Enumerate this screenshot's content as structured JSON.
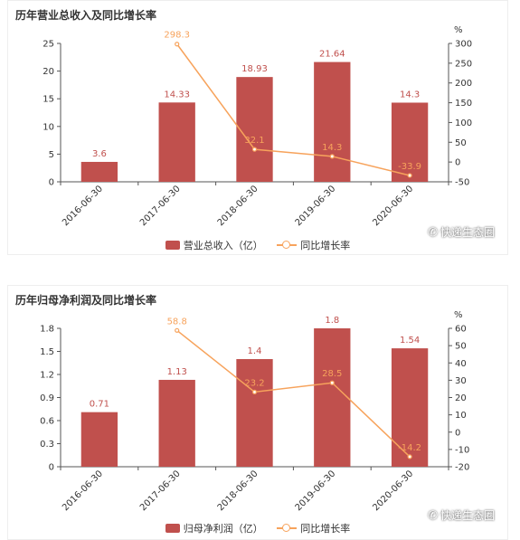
{
  "colors": {
    "bar": "#c0504d",
    "line": "#f7a35c",
    "bar_label": "#c0504d",
    "line_label": "#f7a35c",
    "axis": "#555555",
    "grid": "#e5e5e5"
  },
  "watermark": {
    "icon": "wechat-chat-icon",
    "text": "快递生态圈"
  },
  "charts": [
    {
      "title": "历年营业总收入及同比增长率",
      "legend": {
        "bar": "营业总收入（亿）",
        "line": "同比增长率"
      }
    },
    {
      "title": "历年归母净利润及同比增长率",
      "legend": {
        "bar": "归母净利润（亿）",
        "line": "同比增长率"
      }
    }
  ],
  "chart_data": [
    {
      "type": "bar",
      "title": "历年营业总收入及同比增长率",
      "categories": [
        "2016-06-30",
        "2017-06-30",
        "2018-06-30",
        "2019-06-30",
        "2020-06-30"
      ],
      "series": [
        {
          "name": "营业总收入（亿）",
          "type": "bar",
          "axis": "left",
          "values": [
            3.6,
            14.33,
            18.93,
            21.64,
            14.3
          ],
          "labels": [
            "3.6",
            "14.33",
            "18.93",
            "21.64",
            "14.3"
          ]
        },
        {
          "name": "同比增长率",
          "type": "line",
          "axis": "right",
          "values": [
            null,
            298.3,
            32.1,
            14.3,
            -33.9
          ],
          "labels": [
            "",
            "298.3",
            "32.1",
            "14.3",
            "-33.9"
          ]
        }
      ],
      "y_left": {
        "ticks": [
          "0",
          "5",
          "10",
          "15",
          "20",
          "25"
        ],
        "lim": [
          0,
          25
        ]
      },
      "y_right": {
        "ticks": [
          "-50",
          "0",
          "50",
          "100",
          "150",
          "200",
          "250",
          "300"
        ],
        "lim": [
          -50,
          300
        ],
        "unit": "%"
      },
      "legend_position": "bottom-center",
      "grid": false
    },
    {
      "type": "bar",
      "title": "历年归母净利润及同比增长率",
      "categories": [
        "2016-06-30",
        "2017-06-30",
        "2018-06-30",
        "2019-06-30",
        "2020-06-30"
      ],
      "series": [
        {
          "name": "归母净利润（亿）",
          "type": "bar",
          "axis": "left",
          "values": [
            0.71,
            1.13,
            1.4,
            1.8,
            1.54
          ],
          "labels": [
            "0.71",
            "1.13",
            "1.4",
            "1.8",
            "1.54"
          ]
        },
        {
          "name": "同比增长率",
          "type": "line",
          "axis": "right",
          "values": [
            null,
            58.8,
            23.2,
            28.5,
            -14.2
          ],
          "labels": [
            "",
            "58.8",
            "23.2",
            "28.5",
            "-14.2"
          ]
        }
      ],
      "y_left": {
        "ticks": [
          "0",
          "0.3",
          "0.6",
          "0.9",
          "1.2",
          "1.5",
          "1.8"
        ],
        "lim": [
          0,
          1.8
        ]
      },
      "y_right": {
        "ticks": [
          "-20",
          "-10",
          "0",
          "10",
          "20",
          "30",
          "40",
          "50",
          "60"
        ],
        "lim": [
          -20,
          60
        ],
        "unit": "%"
      },
      "legend_position": "bottom-center",
      "grid": false
    }
  ]
}
